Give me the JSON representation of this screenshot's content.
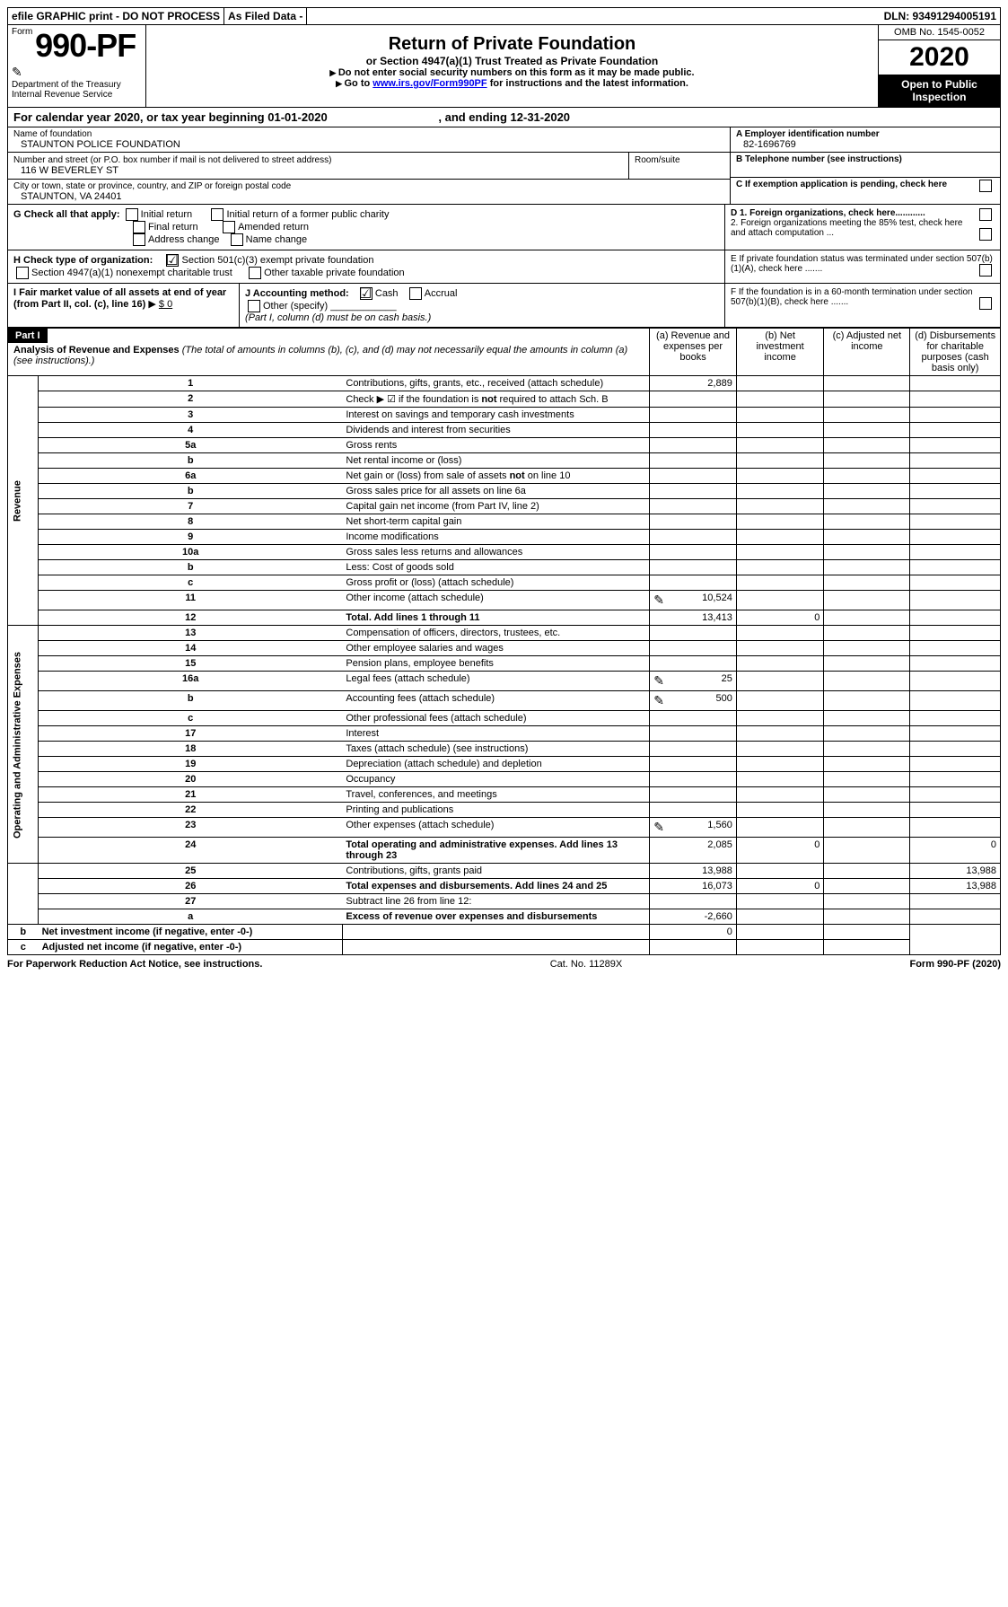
{
  "topbar": {
    "efile": "efile GRAPHIC print - DO NOT PROCESS",
    "asfiled": "As Filed Data -",
    "dln": "DLN: 93491294005191"
  },
  "header": {
    "form_prefix": "Form",
    "form_number": "990-PF",
    "dept": "Department of the Treasury",
    "irs": "Internal Revenue Service",
    "title": "Return of Private Foundation",
    "subtitle": "or Section 4947(a)(1) Trust Treated as Private Foundation",
    "note1": "Do not enter social security numbers on this form as it may be made public.",
    "note2_pre": "Go to ",
    "note2_link": "www.irs.gov/Form990PF",
    "note2_post": " for instructions and the latest information.",
    "omb": "OMB No. 1545-0052",
    "year": "2020",
    "inspection": "Open to Public Inspection"
  },
  "calyear": {
    "text_pre": "For calendar year 2020, or tax year beginning ",
    "begin": "01-01-2020",
    "text_mid": ", and ending ",
    "end": "12-31-2020"
  },
  "entity": {
    "name_label": "Name of foundation",
    "name": "STAUNTON POLICE FOUNDATION",
    "addr_label": "Number and street (or P.O. box number if mail is not delivered to street address)",
    "addr": "116 W BEVERLEY ST",
    "room_label": "Room/suite",
    "city_label": "City or town, state or province, country, and ZIP or foreign postal code",
    "city": "STAUNTON, VA  24401",
    "ein_label": "A Employer identification number",
    "ein": "82-1696769",
    "phone_label": "B Telephone number (see instructions)",
    "c_label": "C If exemption application is pending, check here"
  },
  "checks": {
    "g_label": "G Check all that apply:",
    "g1": "Initial return",
    "g2": "Initial return of a former public charity",
    "g3": "Final return",
    "g4": "Amended return",
    "g5": "Address change",
    "g6": "Name change",
    "h_label": "H Check type of organization:",
    "h1": "Section 501(c)(3) exempt private foundation",
    "h2": "Section 4947(a)(1) nonexempt charitable trust",
    "h3": "Other taxable private foundation",
    "i_label": "I Fair market value of all assets at end of year (from Part II, col. (c), line 16)",
    "i_val": "$ 0",
    "j_label": "J Accounting method:",
    "j1": "Cash",
    "j2": "Accrual",
    "j3": "Other (specify)",
    "j_note": "(Part I, column (d) must be on cash basis.)",
    "d1": "D 1. Foreign organizations, check here............",
    "d2": "2. Foreign organizations meeting the 85% test, check here and attach computation ...",
    "e": "E  If private foundation status was terminated under section 507(b)(1)(A), check here .......",
    "f": "F  If the foundation is in a 60-month termination under section 507(b)(1)(B), check here ......."
  },
  "part1": {
    "label": "Part I",
    "title": "Analysis of Revenue and Expenses",
    "title_note": "(The total of amounts in columns (b), (c), and (d) may not necessarily equal the amounts in column (a) (see instructions).)",
    "col_a": "(a) Revenue and expenses per books",
    "col_b": "(b) Net investment income",
    "col_c": "(c) Adjusted net income",
    "col_d": "(d) Disbursements for charitable purposes (cash basis only)",
    "side_rev": "Revenue",
    "side_exp": "Operating and Administrative Expenses"
  },
  "lines": [
    {
      "n": "1",
      "d": "Contributions, gifts, grants, etc., received (attach schedule)",
      "a": "2,889"
    },
    {
      "n": "2",
      "d": "Check ▶ ☑ if the foundation is not required to attach Sch. B"
    },
    {
      "n": "3",
      "d": "Interest on savings and temporary cash investments"
    },
    {
      "n": "4",
      "d": "Dividends and interest from securities"
    },
    {
      "n": "5a",
      "d": "Gross rents"
    },
    {
      "n": "b",
      "d": "Net rental income or (loss)"
    },
    {
      "n": "6a",
      "d": "Net gain or (loss) from sale of assets not on line 10"
    },
    {
      "n": "b",
      "d": "Gross sales price for all assets on line 6a"
    },
    {
      "n": "7",
      "d": "Capital gain net income (from Part IV, line 2)"
    },
    {
      "n": "8",
      "d": "Net short-term capital gain"
    },
    {
      "n": "9",
      "d": "Income modifications"
    },
    {
      "n": "10a",
      "d": "Gross sales less returns and allowances"
    },
    {
      "n": "b",
      "d": "Less: Cost of goods sold"
    },
    {
      "n": "c",
      "d": "Gross profit or (loss) (attach schedule)"
    },
    {
      "n": "11",
      "d": "Other income (attach schedule)",
      "icon": true,
      "a": "10,524"
    },
    {
      "n": "12",
      "d": "Total. Add lines 1 through 11",
      "bold": true,
      "a": "13,413",
      "b": "0"
    },
    {
      "n": "13",
      "d": "Compensation of officers, directors, trustees, etc."
    },
    {
      "n": "14",
      "d": "Other employee salaries and wages"
    },
    {
      "n": "15",
      "d": "Pension plans, employee benefits"
    },
    {
      "n": "16a",
      "d": "Legal fees (attach schedule)",
      "icon": true,
      "a": "25"
    },
    {
      "n": "b",
      "d": "Accounting fees (attach schedule)",
      "icon": true,
      "a": "500"
    },
    {
      "n": "c",
      "d": "Other professional fees (attach schedule)"
    },
    {
      "n": "17",
      "d": "Interest"
    },
    {
      "n": "18",
      "d": "Taxes (attach schedule) (see instructions)"
    },
    {
      "n": "19",
      "d": "Depreciation (attach schedule) and depletion"
    },
    {
      "n": "20",
      "d": "Occupancy"
    },
    {
      "n": "21",
      "d": "Travel, conferences, and meetings"
    },
    {
      "n": "22",
      "d": "Printing and publications"
    },
    {
      "n": "23",
      "d": "Other expenses (attach schedule)",
      "icon": true,
      "a": "1,560"
    },
    {
      "n": "24",
      "d": "Total operating and administrative expenses. Add lines 13 through 23",
      "bold": true,
      "a": "2,085",
      "b": "0",
      "dd": "0"
    },
    {
      "n": "25",
      "d": "Contributions, gifts, grants paid",
      "a": "13,988",
      "dd": "13,988"
    },
    {
      "n": "26",
      "d": "Total expenses and disbursements. Add lines 24 and 25",
      "bold": true,
      "a": "16,073",
      "b": "0",
      "dd": "13,988"
    },
    {
      "n": "27",
      "d": "Subtract line 26 from line 12:"
    },
    {
      "n": "a",
      "d": "Excess of revenue over expenses and disbursements",
      "bold": true,
      "a": "-2,660"
    },
    {
      "n": "b",
      "d": "Net investment income (if negative, enter -0-)",
      "bold": true,
      "b": "0"
    },
    {
      "n": "c",
      "d": "Adjusted net income (if negative, enter -0-)",
      "bold": true
    }
  ],
  "footer": {
    "left": "For Paperwork Reduction Act Notice, see instructions.",
    "mid": "Cat. No. 11289X",
    "right": "Form 990-PF (2020)"
  }
}
